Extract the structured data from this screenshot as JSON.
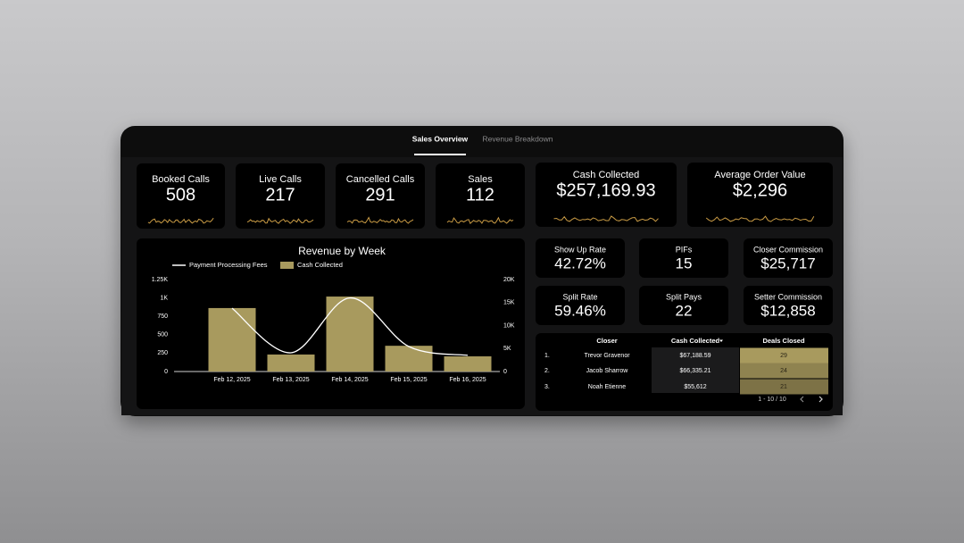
{
  "tabs": [
    "Sales Overview",
    "Revenue Breakdown"
  ],
  "kpis": [
    {
      "label": "Booked Calls",
      "value": "508"
    },
    {
      "label": "Live Calls",
      "value": "217"
    },
    {
      "label": "Cancelled Calls",
      "value": "291"
    },
    {
      "label": "Sales",
      "value": "112"
    },
    {
      "label": "Cash Collected",
      "value": "$257,169.93"
    },
    {
      "label": "Average Order Value",
      "value": "$2,296"
    }
  ],
  "metrics": [
    {
      "label": "Show Up Rate",
      "value": "42.72%"
    },
    {
      "label": "PIFs",
      "value": "15"
    },
    {
      "label": "Closer Commission",
      "value": "$25,717"
    },
    {
      "label": "Split Rate",
      "value": "59.46%"
    },
    {
      "label": "Split Pays",
      "value": "22"
    },
    {
      "label": "Setter Commission",
      "value": "$12,858"
    }
  ],
  "revenue_chart": {
    "type": "combo",
    "title": "Revenue by Week",
    "categories": [
      "Feb 12, 2025",
      "Feb 13, 2025",
      "Feb 14, 2025",
      "Feb 15, 2025",
      "Feb 16, 2025"
    ],
    "series": [
      {
        "name": "Payment Processing Fees",
        "type": "line",
        "color": "#ffffff",
        "values": [
          860,
          255,
          1000,
          340,
          220
        ]
      },
      {
        "name": "Cash Collected",
        "type": "bar",
        "color": "#a89a5e",
        "axis": "y2",
        "values": [
          13800,
          3700,
          16300,
          5600,
          3300
        ]
      }
    ],
    "ylim": [
      0,
      1250
    ],
    "yticks": [
      0,
      250,
      500,
      750,
      {
        "value": 1000,
        "label": "1K"
      },
      {
        "value": 1250,
        "label": "1.25K"
      }
    ],
    "y2lim": [
      0,
      20000
    ],
    "y2ticks": [
      0,
      {
        "value": 5000,
        "label": "5K"
      },
      {
        "value": 10000,
        "label": "10K"
      },
      {
        "value": 15000,
        "label": "15K"
      },
      {
        "value": 20000,
        "label": "20K"
      }
    ]
  },
  "table": {
    "columns": [
      "Closer",
      "Cash Collected",
      "Deals Closed"
    ],
    "rows": [
      [
        "1.",
        "Trevor Gravenor",
        "$67,188.59",
        "29"
      ],
      [
        "2.",
        "Jacob Sharrow",
        "$66,335.21",
        "24"
      ],
      [
        "3.",
        "Noah Etienne",
        "$55,612",
        "21"
      ]
    ],
    "pagination": "1 - 10 / 10"
  }
}
